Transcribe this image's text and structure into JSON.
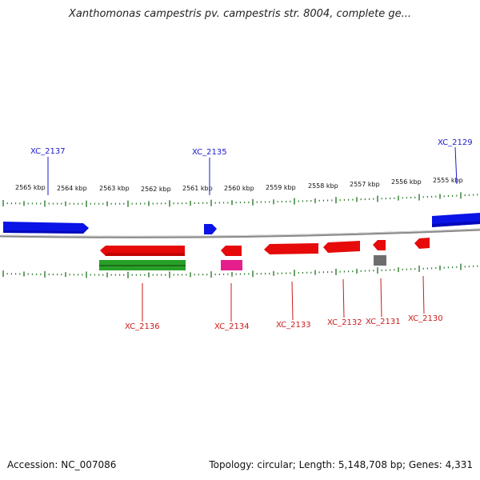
{
  "title": "Xanthomonas campestris pv. campestris str. 8004, complete ge...",
  "footer": {
    "accession": "Accession: NC_007086",
    "summary": "Topology: circular; Length: 5,148,708 bp; Genes: 4,331"
  },
  "colors": {
    "plus_strand": "#0a14e6",
    "minus_strand": "#e60a0a",
    "rna": "#28a028",
    "pink_feature": "#e61e8c",
    "gray_feature": "#6e6e6e",
    "backbone": "#8a8a8a",
    "ticks": "#2a7a2a",
    "plus_label": "#1a1acc",
    "minus_label": "#cc1a1a"
  },
  "scale": {
    "unit": "kbp",
    "labels": [
      "2565 kbp",
      "2564 kbp",
      "2563 kbp",
      "2562 kbp",
      "2561 kbp",
      "2560 kbp",
      "2559 kbp",
      "2558 kbp",
      "2557 kbp",
      "2556 kbp",
      "2555 kbp"
    ]
  },
  "genes_plus": [
    {
      "id": "XC_2137",
      "labeled": true
    },
    {
      "id": "XC_2135",
      "labeled": true
    },
    {
      "id": "XC_2129",
      "labeled": true
    }
  ],
  "genes_minus": [
    {
      "id": "XC_2136",
      "labeled": true
    },
    {
      "id": "XC_2134",
      "labeled": true
    },
    {
      "id": "XC_2133",
      "labeled": true
    },
    {
      "id": "XC_2132",
      "labeled": true
    },
    {
      "id": "XC_2131",
      "labeled": true
    },
    {
      "id": "XC_2130",
      "labeled": true
    }
  ],
  "features": [
    "rna-green",
    "pink-feature",
    "gray-feature"
  ]
}
